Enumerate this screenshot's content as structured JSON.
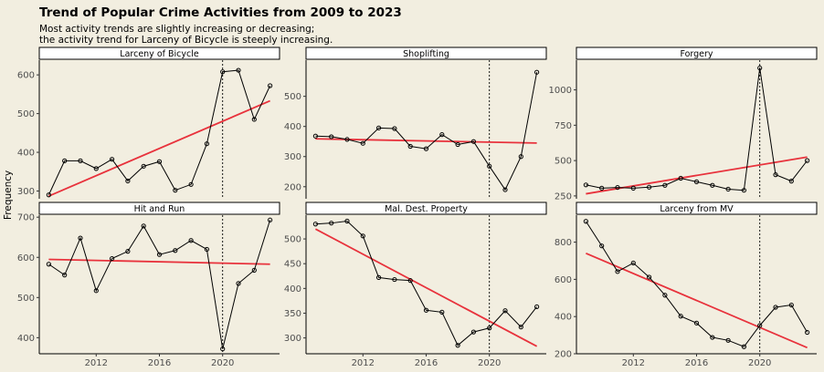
{
  "title": "Trend of Popular Crime Activities from 2009 to 2023",
  "subtitle_lines": [
    "Most activity trends are slightly increasing or decreasing;",
    "the activity trend for Larceny of Bicycle is steeply increasing."
  ],
  "ylabel": "Frequency",
  "colors": {
    "background": "#f2eee0",
    "trend": "#e8323c",
    "line": "#000000",
    "strip_fill": "#ffffff"
  },
  "chart_data": [
    {
      "type": "line",
      "panel": "Larceny of Bicycle",
      "x": [
        2009,
        2010,
        2011,
        2012,
        2013,
        2014,
        2015,
        2016,
        2017,
        2018,
        2019,
        2020,
        2021,
        2022,
        2023
      ],
      "values": [
        290,
        378,
        378,
        358,
        382,
        326,
        364,
        376,
        302,
        317,
        422,
        608,
        612,
        485,
        572
      ],
      "trend": {
        "start": 287,
        "end": 533
      },
      "yticks": [
        300,
        400,
        500,
        600
      ],
      "ylim": [
        280,
        638
      ],
      "vline_x": 2020
    },
    {
      "type": "line",
      "panel": "Shoplifting",
      "x": [
        2009,
        2010,
        2011,
        2012,
        2013,
        2014,
        2015,
        2016,
        2017,
        2018,
        2019,
        2020,
        2021,
        2022,
        2023
      ],
      "values": [
        368,
        366,
        357,
        344,
        395,
        393,
        334,
        326,
        373,
        340,
        350,
        268,
        190,
        300,
        580
      ],
      "trend": {
        "start": 359,
        "end": 345
      },
      "yticks": [
        200,
        300,
        400,
        500
      ],
      "ylim": [
        160,
        620
      ],
      "vline_x": 2020
    },
    {
      "type": "line",
      "panel": "Forgery",
      "x": [
        2009,
        2010,
        2011,
        2012,
        2013,
        2014,
        2015,
        2016,
        2017,
        2018,
        2019,
        2020,
        2021,
        2022,
        2023
      ],
      "values": [
        328,
        305,
        310,
        305,
        312,
        325,
        375,
        350,
        325,
        298,
        290,
        1155,
        400,
        355,
        500
      ],
      "trend": {
        "start": 265,
        "end": 525
      },
      "yticks": [
        250,
        500,
        750,
        1000
      ],
      "ylim": [
        230,
        1210
      ],
      "vline_x": 2020
    },
    {
      "type": "line",
      "panel": "Hit and Run",
      "x": [
        2009,
        2010,
        2011,
        2012,
        2013,
        2014,
        2015,
        2016,
        2017,
        2018,
        2019,
        2020,
        2021,
        2022,
        2023
      ],
      "values": [
        583,
        556,
        648,
        517,
        597,
        615,
        678,
        607,
        617,
        642,
        620,
        372,
        535,
        568,
        693
      ],
      "trend": {
        "start": 595,
        "end": 583
      },
      "yticks": [
        400,
        500,
        600,
        700
      ],
      "ylim": [
        360,
        705
      ],
      "vline_x": 2020
    },
    {
      "type": "line",
      "panel": "Mal. Dest. Property",
      "x": [
        2009,
        2010,
        2011,
        2012,
        2013,
        2014,
        2015,
        2016,
        2017,
        2018,
        2019,
        2020,
        2021,
        2022,
        2023
      ],
      "values": [
        530,
        532,
        536,
        506,
        422,
        418,
        416,
        356,
        352,
        285,
        312,
        320,
        355,
        322,
        363
      ],
      "trend": {
        "start": 520,
        "end": 283
      },
      "yticks": [
        300,
        350,
        400,
        450,
        500
      ],
      "ylim": [
        268,
        548
      ],
      "vline_x": 2020
    },
    {
      "type": "line",
      "panel": "Larceny from MV",
      "x": [
        2009,
        2010,
        2011,
        2012,
        2013,
        2014,
        2015,
        2016,
        2017,
        2018,
        2019,
        2020,
        2021,
        2022,
        2023
      ],
      "values": [
        912,
        780,
        642,
        688,
        612,
        515,
        402,
        365,
        288,
        272,
        238,
        352,
        450,
        462,
        315
      ],
      "trend": {
        "start": 740,
        "end": 233
      },
      "yticks": [
        200,
        400,
        600,
        800
      ],
      "ylim": [
        200,
        945
      ],
      "vline_x": 2020
    }
  ],
  "xticks": [
    2012,
    2016,
    2020
  ],
  "xlim": [
    2008.4,
    2023.6
  ]
}
